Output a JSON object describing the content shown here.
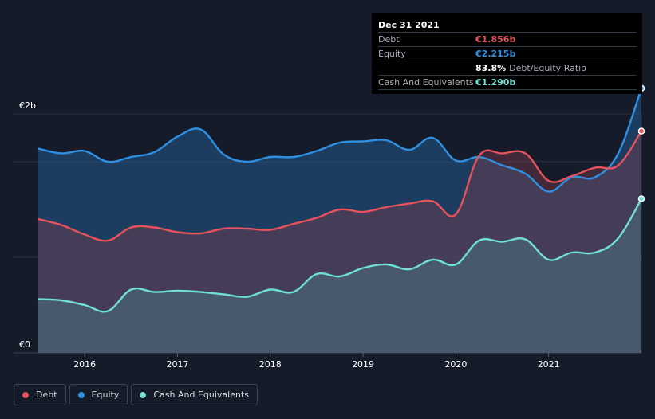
{
  "chart_data": {
    "type": "area",
    "title": "",
    "ylabel_top": "€2b",
    "ylabel_bottom": "€0",
    "ylim": [
      0,
      2.0
    ],
    "xlim": [
      2015.5,
      2022.0
    ],
    "x_ticks": [
      {
        "value": 2016,
        "label": "2016"
      },
      {
        "value": 2017,
        "label": "2017"
      },
      {
        "value": 2018,
        "label": "2018"
      },
      {
        "value": 2019,
        "label": "2019"
      },
      {
        "value": 2020,
        "label": "2020"
      },
      {
        "value": 2021,
        "label": "2021"
      }
    ],
    "series": [
      {
        "name": "Equity",
        "color": "#2f8fe0",
        "x": [
          2015.5,
          2015.75,
          2016.0,
          2016.25,
          2016.5,
          2016.75,
          2017.0,
          2017.25,
          2017.5,
          2017.75,
          2018.0,
          2018.25,
          2018.5,
          2018.75,
          2019.0,
          2019.25,
          2019.5,
          2019.75,
          2020.0,
          2020.25,
          2020.5,
          2020.75,
          2021.0,
          2021.25,
          2021.5,
          2021.75,
          2022.0
        ],
        "values": [
          1.71,
          1.67,
          1.69,
          1.6,
          1.64,
          1.68,
          1.81,
          1.87,
          1.66,
          1.6,
          1.64,
          1.64,
          1.69,
          1.76,
          1.77,
          1.78,
          1.7,
          1.8,
          1.61,
          1.64,
          1.57,
          1.5,
          1.35,
          1.47,
          1.47,
          1.67,
          2.215
        ]
      },
      {
        "name": "Debt",
        "color": "#e8525c",
        "x": [
          2015.5,
          2015.75,
          2016.0,
          2016.25,
          2016.5,
          2016.75,
          2017.0,
          2017.25,
          2017.5,
          2017.75,
          2018.0,
          2018.25,
          2018.5,
          2018.75,
          2019.0,
          2019.25,
          2019.5,
          2019.75,
          2020.0,
          2020.25,
          2020.5,
          2020.75,
          2021.0,
          2021.25,
          2021.5,
          2021.75,
          2022.0
        ],
        "values": [
          1.12,
          1.07,
          0.99,
          0.94,
          1.05,
          1.05,
          1.01,
          1.0,
          1.04,
          1.04,
          1.03,
          1.08,
          1.13,
          1.2,
          1.18,
          1.22,
          1.25,
          1.27,
          1.16,
          1.65,
          1.67,
          1.67,
          1.44,
          1.48,
          1.55,
          1.57,
          1.856
        ]
      },
      {
        "name": "Cash And Equivalents",
        "color": "#6fe0d2",
        "x": [
          2015.5,
          2015.75,
          2016.0,
          2016.25,
          2016.5,
          2016.75,
          2017.0,
          2017.25,
          2017.5,
          2017.75,
          2018.0,
          2018.25,
          2018.5,
          2018.75,
          2019.0,
          2019.25,
          2019.5,
          2019.75,
          2020.0,
          2020.25,
          2020.5,
          2020.75,
          2021.0,
          2021.25,
          2021.5,
          2021.75,
          2022.0
        ],
        "values": [
          0.45,
          0.44,
          0.4,
          0.35,
          0.53,
          0.51,
          0.52,
          0.51,
          0.49,
          0.47,
          0.53,
          0.51,
          0.66,
          0.64,
          0.71,
          0.74,
          0.7,
          0.78,
          0.74,
          0.94,
          0.93,
          0.95,
          0.78,
          0.84,
          0.84,
          0.96,
          1.29
        ]
      }
    ]
  },
  "tooltip": {
    "date": "Dec 31 2021",
    "rows": [
      {
        "label": "Debt",
        "value": "€1.856b",
        "color": "#e8525c"
      },
      {
        "label": "Equity",
        "value": "€2.215b",
        "color": "#2f8fe0"
      }
    ],
    "ratio_value": "83.8%",
    "ratio_label": "Debt/Equity Ratio",
    "cash_label": "Cash And Equivalents",
    "cash_value": "€1.290b",
    "cash_color": "#6fe0d2"
  },
  "legend": [
    {
      "label": "Debt",
      "color": "#e8525c"
    },
    {
      "label": "Equity",
      "color": "#2f8fe0"
    },
    {
      "label": "Cash And Equivalents",
      "color": "#6fe0d2"
    }
  ]
}
